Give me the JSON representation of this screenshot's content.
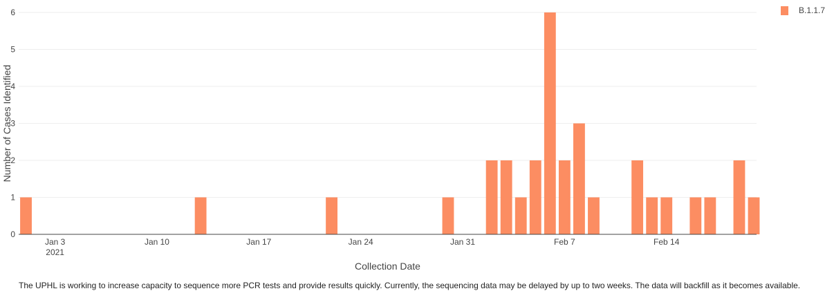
{
  "chart_data": {
    "type": "bar",
    "xlabel": "Collection Date",
    "ylabel": "Number of Cases Identified",
    "ylim": [
      0,
      6
    ],
    "yticks": [
      0,
      1,
      2,
      3,
      4,
      5,
      6
    ],
    "x_start": "2020-12-31",
    "x_end": "2021-02-19",
    "xticks": [
      {
        "date": "2021-01-03",
        "label": "Jan 3",
        "sublabel": "2021"
      },
      {
        "date": "2021-01-10",
        "label": "Jan 10"
      },
      {
        "date": "2021-01-17",
        "label": "Jan 17"
      },
      {
        "date": "2021-01-24",
        "label": "Jan 24"
      },
      {
        "date": "2021-01-31",
        "label": "Jan 31"
      },
      {
        "date": "2021-02-07",
        "label": "Feb 7"
      },
      {
        "date": "2021-02-14",
        "label": "Feb 14"
      }
    ],
    "grid": true,
    "legend": "top-right",
    "series": [
      {
        "name": "B.1.1.7",
        "color": "#fc8d62",
        "x": [
          "2021-01-01",
          "2021-01-13",
          "2021-01-22",
          "2021-01-30",
          "2021-02-02",
          "2021-02-03",
          "2021-02-04",
          "2021-02-05",
          "2021-02-06",
          "2021-02-07",
          "2021-02-08",
          "2021-02-09",
          "2021-02-12",
          "2021-02-13",
          "2021-02-14",
          "2021-02-16",
          "2021-02-17",
          "2021-02-19",
          "2021-02-20"
        ],
        "values": [
          1,
          1,
          1,
          1,
          2,
          2,
          1,
          2,
          6,
          2,
          3,
          1,
          2,
          1,
          1,
          1,
          1,
          2,
          1
        ]
      }
    ]
  },
  "footnote": "The UPHL is working to increase capacity to sequence more PCR tests and provide results quickly. Currently, the sequencing data may be delayed by up to two weeks. The data will backfill as it becomes available."
}
